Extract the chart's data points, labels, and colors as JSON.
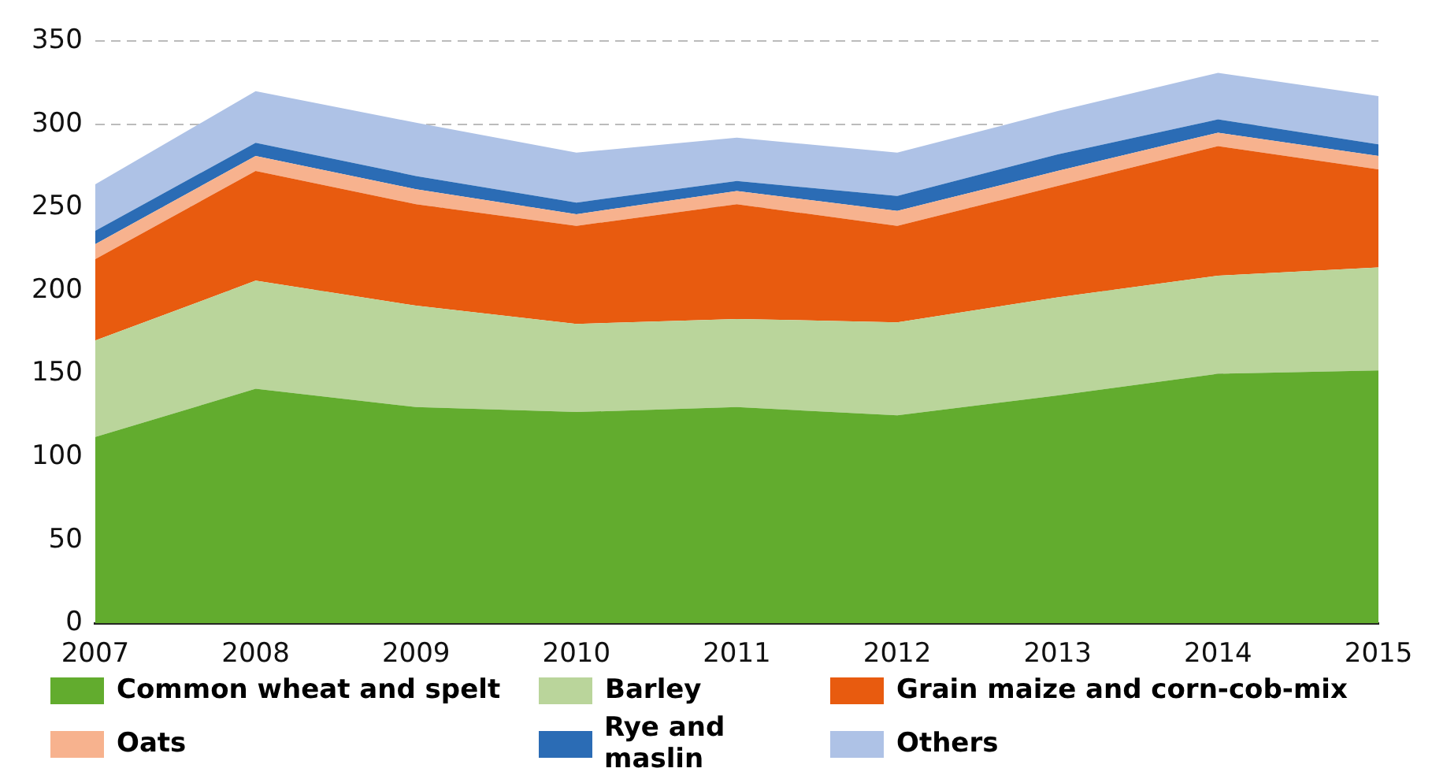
{
  "chart_data": {
    "type": "area",
    "stacked": true,
    "categories": [
      "2007",
      "2008",
      "2009",
      "2010",
      "2011",
      "2012",
      "2013",
      "2014",
      "2015"
    ],
    "ylim": [
      0,
      350
    ],
    "yticks": [
      0,
      50,
      100,
      150,
      200,
      250,
      300,
      350
    ],
    "grid": "y",
    "legend": "bottom",
    "series": [
      {
        "name": "Common wheat and spelt",
        "color": "#62ac2e",
        "values": [
          112,
          141,
          130,
          127,
          130,
          125,
          137,
          150,
          152
        ]
      },
      {
        "name": "Barley",
        "color": "#bad59b",
        "values": [
          58,
          65,
          61,
          53,
          53,
          56,
          59,
          59,
          62
        ]
      },
      {
        "name": "Grain maize and corn-cob-mix",
        "color": "#e85b0f",
        "values": [
          49,
          66,
          61,
          59,
          69,
          58,
          67,
          78,
          59
        ]
      },
      {
        "name": "Oats",
        "color": "#f7b28e",
        "values": [
          9,
          9,
          9,
          7,
          8,
          9,
          9,
          8,
          8
        ]
      },
      {
        "name": "Rye and maslin",
        "color": "#2b6cb5",
        "values": [
          8,
          8,
          8,
          7,
          6,
          9,
          10,
          8,
          7
        ]
      },
      {
        "name": "Others",
        "color": "#aec2e6",
        "values": [
          28,
          31,
          32,
          30,
          26,
          26,
          26,
          28,
          29
        ]
      }
    ]
  }
}
